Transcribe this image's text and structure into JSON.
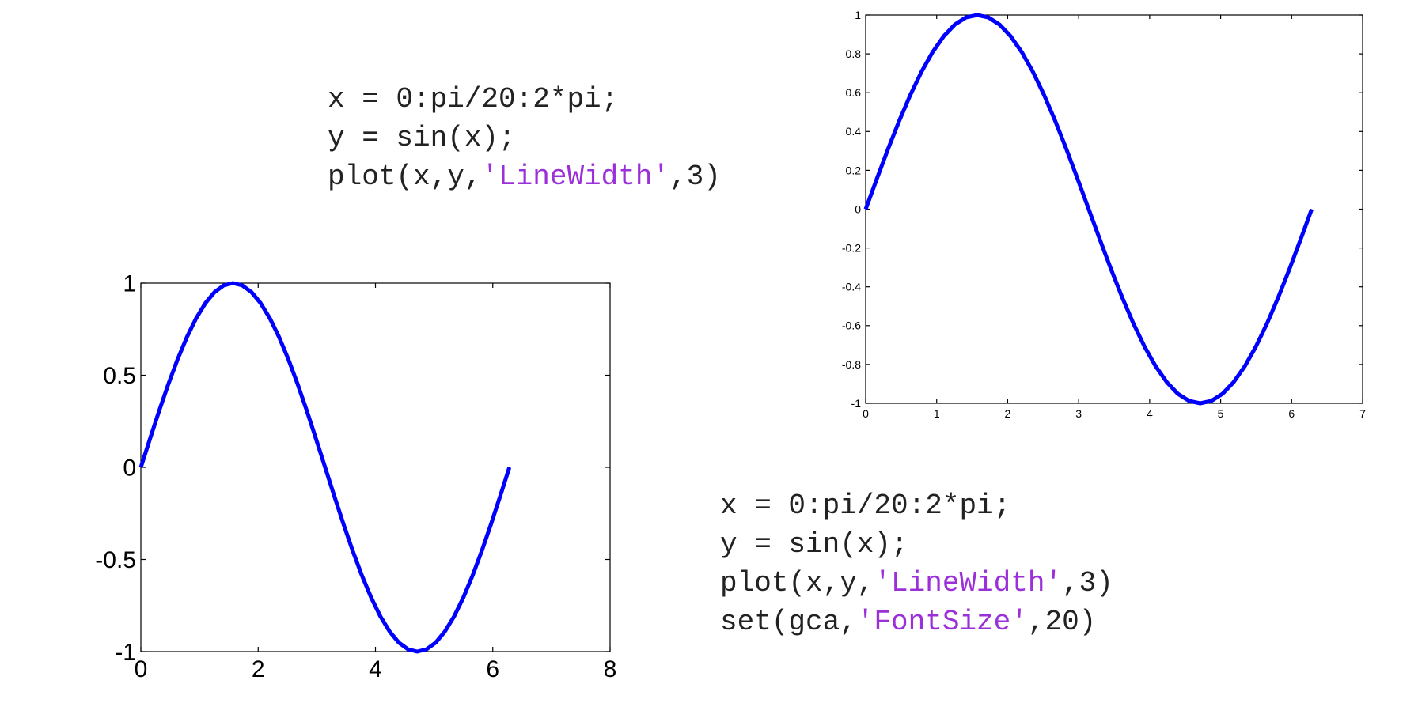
{
  "code_blocks": [
    {
      "lines": [
        [
          {
            "text": "x = 0:pi/20:2*pi;",
            "kind": "code"
          }
        ],
        [
          {
            "text": "y = sin(x);",
            "kind": "code"
          }
        ],
        [
          {
            "text": "plot(x,y,",
            "kind": "code"
          },
          {
            "text": "'LineWidth'",
            "kind": "string"
          },
          {
            "text": ",3)",
            "kind": "code"
          }
        ]
      ]
    },
    {
      "lines": [
        [
          {
            "text": "x = 0:pi/20:2*pi;",
            "kind": "code"
          }
        ],
        [
          {
            "text": "y = sin(x);",
            "kind": "code"
          }
        ],
        [
          {
            "text": "plot(x,y,",
            "kind": "code"
          },
          {
            "text": "'LineWidth'",
            "kind": "string"
          },
          {
            "text": ",3)",
            "kind": "code"
          }
        ],
        [
          {
            "text": "set(gca,",
            "kind": "code"
          },
          {
            "text": "'FontSize'",
            "kind": "string"
          },
          {
            "text": ",20)",
            "kind": "code"
          }
        ]
      ]
    }
  ],
  "colors": {
    "code_text": "#222222",
    "code_string": "#9b30d9",
    "line": "#0000ff",
    "axes": "#000000"
  },
  "chart_data": [
    {
      "type": "line",
      "title": "",
      "xlabel": "",
      "ylabel": "",
      "xlim": [
        0,
        7
      ],
      "ylim": [
        -1,
        1
      ],
      "xticks": [
        0,
        1,
        2,
        3,
        4,
        5,
        6,
        7
      ],
      "yticks": [
        -1,
        -0.8,
        -0.6,
        -0.4,
        -0.2,
        0,
        0.2,
        0.4,
        0.6,
        0.8,
        1
      ],
      "xtick_labels": [
        "0",
        "1",
        "2",
        "3",
        "4",
        "5",
        "6",
        "7"
      ],
      "ytick_labels": [
        "-1",
        "-0.8",
        "-0.6",
        "-0.4",
        "-0.2",
        "0",
        "0.2",
        "0.4",
        "0.6",
        "0.8",
        "1"
      ],
      "grid": false,
      "series": [
        {
          "x": [
            0,
            0.1571,
            0.3142,
            0.4712,
            0.6283,
            0.7854,
            0.9425,
            1.0996,
            1.2566,
            1.4137,
            1.5708,
            1.7279,
            1.885,
            2.042,
            2.1991,
            2.3562,
            2.5133,
            2.6704,
            2.8274,
            2.9845,
            3.1416,
            3.2987,
            3.4558,
            3.6128,
            3.7699,
            3.927,
            4.0841,
            4.2412,
            4.3982,
            4.5553,
            4.7124,
            4.8695,
            5.0265,
            5.1836,
            5.3407,
            5.4978,
            5.6549,
            5.8119,
            5.969,
            6.1261,
            6.2832
          ],
          "y": [
            0,
            0.1564,
            0.309,
            0.454,
            0.5878,
            0.7071,
            0.809,
            0.891,
            0.9511,
            0.9877,
            1,
            0.9877,
            0.9511,
            0.891,
            0.809,
            0.7071,
            0.5878,
            0.454,
            0.309,
            0.1564,
            0,
            -0.1564,
            -0.309,
            -0.454,
            -0.5878,
            -0.7071,
            -0.809,
            -0.891,
            -0.9511,
            -0.9877,
            -1,
            -0.9877,
            -0.9511,
            -0.891,
            -0.809,
            -0.7071,
            -0.5878,
            -0.454,
            -0.309,
            -0.1564,
            0
          ]
        }
      ]
    },
    {
      "type": "line",
      "title": "",
      "xlabel": "",
      "ylabel": "",
      "xlim": [
        0,
        8
      ],
      "ylim": [
        -1,
        1
      ],
      "xticks": [
        0,
        2,
        4,
        6,
        8
      ],
      "yticks": [
        -1,
        -0.5,
        0,
        0.5,
        1
      ],
      "xtick_labels": [
        "0",
        "2",
        "4",
        "6",
        "8"
      ],
      "ytick_labels": [
        "-1",
        "-0.5",
        "0",
        "0.5",
        "1"
      ],
      "grid": false,
      "series": [
        {
          "x": [
            0,
            0.1571,
            0.3142,
            0.4712,
            0.6283,
            0.7854,
            0.9425,
            1.0996,
            1.2566,
            1.4137,
            1.5708,
            1.7279,
            1.885,
            2.042,
            2.1991,
            2.3562,
            2.5133,
            2.6704,
            2.8274,
            2.9845,
            3.1416,
            3.2987,
            3.4558,
            3.6128,
            3.7699,
            3.927,
            4.0841,
            4.2412,
            4.3982,
            4.5553,
            4.7124,
            4.8695,
            5.0265,
            5.1836,
            5.3407,
            5.4978,
            5.6549,
            5.8119,
            5.969,
            6.1261,
            6.2832
          ],
          "y": [
            0,
            0.1564,
            0.309,
            0.454,
            0.5878,
            0.7071,
            0.809,
            0.891,
            0.9511,
            0.9877,
            1,
            0.9877,
            0.9511,
            0.891,
            0.809,
            0.7071,
            0.5878,
            0.454,
            0.309,
            0.1564,
            0,
            -0.1564,
            -0.309,
            -0.454,
            -0.5878,
            -0.7071,
            -0.809,
            -0.891,
            -0.9511,
            -0.9877,
            -1,
            -0.9877,
            -0.9511,
            -0.891,
            -0.809,
            -0.7071,
            -0.5878,
            -0.454,
            -0.309,
            -0.1564,
            0
          ]
        }
      ]
    }
  ]
}
